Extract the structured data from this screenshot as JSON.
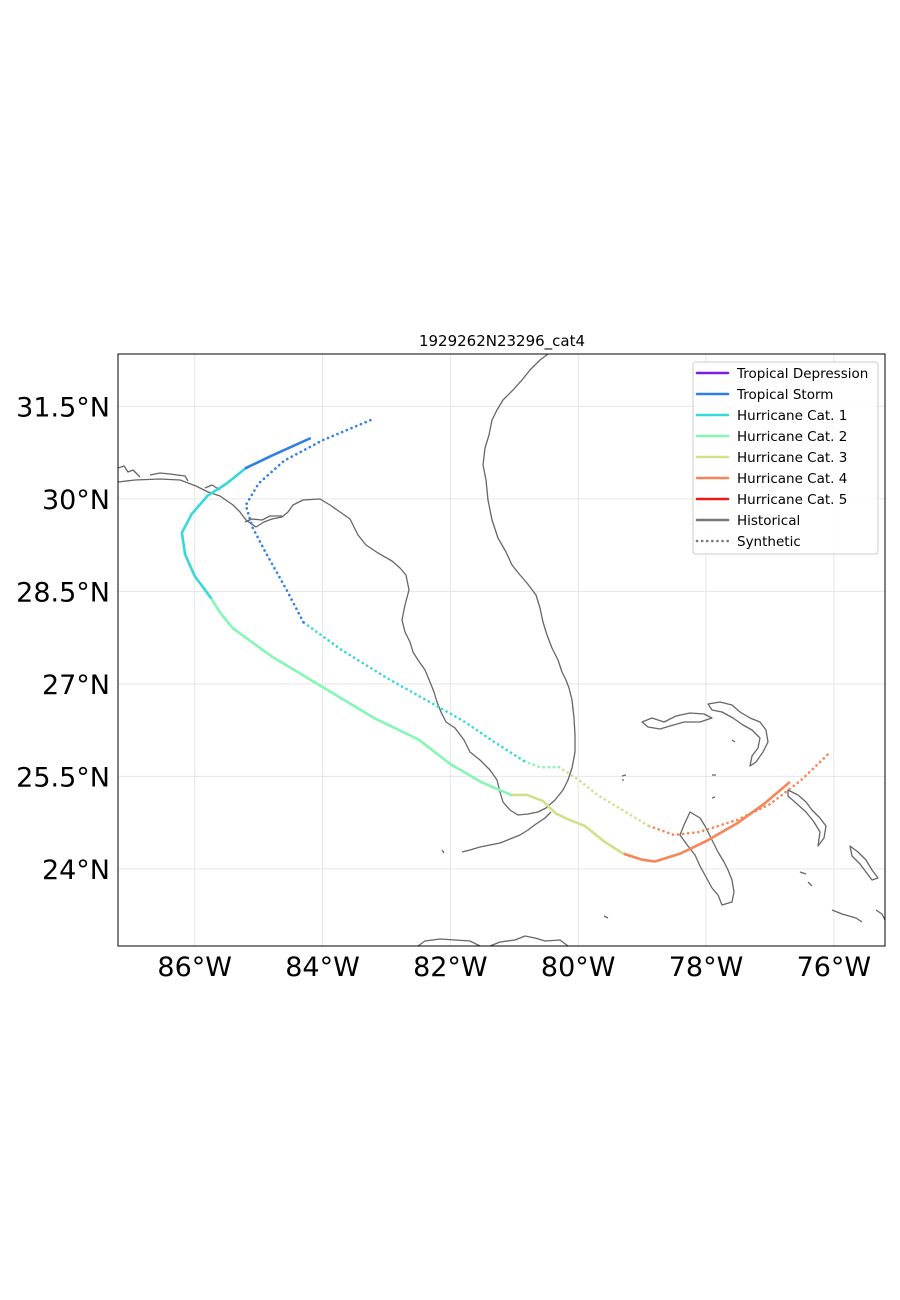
{
  "title": "1929262N23296_cat4",
  "axes": {
    "lon_range": [
      -87.2,
      -75.2
    ],
    "lat_range": [
      22.75,
      32.35
    ],
    "x_ticks": [
      {
        "value": -86,
        "label": "86°W"
      },
      {
        "value": -84,
        "label": "84°W"
      },
      {
        "value": -82,
        "label": "82°W"
      },
      {
        "value": -80,
        "label": "80°W"
      },
      {
        "value": -78,
        "label": "78°W"
      },
      {
        "value": -76,
        "label": "76°W"
      }
    ],
    "y_ticks": [
      {
        "value": 31.5,
        "label": "31.5°N"
      },
      {
        "value": 30,
        "label": "30°N"
      },
      {
        "value": 28.5,
        "label": "28.5°N"
      },
      {
        "value": 27,
        "label": "27°N"
      },
      {
        "value": 25.5,
        "label": "25.5°N"
      },
      {
        "value": 24,
        "label": "24°N"
      }
    ],
    "grid": true
  },
  "colors": {
    "tropical_depression": "#7a1de6",
    "tropical_storm": "#2f7fe6",
    "cat1": "#36d9d9",
    "cat2": "#85f7b5",
    "cat3": "#d3df89",
    "cat4": "#f98455",
    "cat5": "#ee1a1a",
    "historical": "#777777",
    "synthetic": "#777777",
    "coastline": "#666666"
  },
  "legend": {
    "placement": "top-right",
    "entries": [
      {
        "label": "Tropical Depression",
        "color_key": "tropical_depression",
        "style": "solid"
      },
      {
        "label": "Tropical Storm",
        "color_key": "tropical_storm",
        "style": "solid"
      },
      {
        "label": "Hurricane Cat. 1",
        "color_key": "cat1",
        "style": "solid"
      },
      {
        "label": "Hurricane Cat. 2",
        "color_key": "cat2",
        "style": "solid"
      },
      {
        "label": "Hurricane Cat. 3",
        "color_key": "cat3",
        "style": "solid"
      },
      {
        "label": "Hurricane Cat. 4",
        "color_key": "cat4",
        "style": "solid"
      },
      {
        "label": "Hurricane Cat. 5",
        "color_key": "cat5",
        "style": "solid"
      },
      {
        "label": "Historical",
        "color_key": "historical",
        "style": "solid"
      },
      {
        "label": "Synthetic",
        "color_key": "synthetic",
        "style": "dotted"
      }
    ]
  },
  "tracks": {
    "historical": {
      "style": "solid",
      "segments": [
        {
          "category": "cat4",
          "points": [
            [
              -76.7,
              25.4
            ],
            [
              -77.1,
              25.05
            ],
            [
              -77.5,
              24.75
            ],
            [
              -78.0,
              24.45
            ],
            [
              -78.4,
              24.25
            ],
            [
              -78.8,
              24.12
            ],
            [
              -79.0,
              24.15
            ],
            [
              -79.3,
              24.25
            ]
          ]
        },
        {
          "category": "cat3",
          "points": [
            [
              -79.3,
              24.25
            ],
            [
              -79.6,
              24.45
            ],
            [
              -79.9,
              24.7
            ],
            [
              -80.15,
              24.8
            ],
            [
              -80.35,
              24.9
            ],
            [
              -80.55,
              25.1
            ],
            [
              -80.8,
              25.2
            ],
            [
              -81.05,
              25.2
            ]
          ]
        },
        {
          "category": "cat2",
          "points": [
            [
              -81.05,
              25.2
            ],
            [
              -81.5,
              25.4
            ],
            [
              -82.0,
              25.7
            ],
            [
              -82.5,
              26.1
            ],
            [
              -83.2,
              26.45
            ],
            [
              -84.0,
              26.95
            ],
            [
              -84.8,
              27.45
            ],
            [
              -85.4,
              27.9
            ],
            [
              -85.6,
              28.15
            ],
            [
              -85.75,
              28.4
            ]
          ]
        },
        {
          "category": "cat1",
          "points": [
            [
              -85.75,
              28.4
            ],
            [
              -86.0,
              28.75
            ],
            [
              -86.15,
              29.1
            ],
            [
              -86.2,
              29.45
            ],
            [
              -86.05,
              29.75
            ],
            [
              -85.8,
              30.05
            ],
            [
              -85.5,
              30.25
            ],
            [
              -85.2,
              30.5
            ]
          ]
        },
        {
          "category": "tropical_storm",
          "points": [
            [
              -85.2,
              30.5
            ],
            [
              -84.8,
              30.7
            ],
            [
              -84.2,
              30.98
            ]
          ]
        }
      ]
    },
    "synthetic": {
      "style": "dotted",
      "segments": [
        {
          "category": "cat4",
          "points": [
            [
              -76.1,
              25.85
            ],
            [
              -76.5,
              25.45
            ],
            [
              -77.0,
              25.05
            ],
            [
              -77.5,
              24.8
            ],
            [
              -78.1,
              24.6
            ],
            [
              -78.5,
              24.55
            ],
            [
              -78.9,
              24.7
            ]
          ]
        },
        {
          "category": "cat3",
          "points": [
            [
              -78.9,
              24.7
            ],
            [
              -79.3,
              24.95
            ],
            [
              -79.7,
              25.2
            ],
            [
              -80.0,
              25.45
            ],
            [
              -80.3,
              25.65
            ]
          ]
        },
        {
          "category": "cat2",
          "points": [
            [
              -80.3,
              25.65
            ],
            [
              -80.6,
              25.65
            ],
            [
              -80.85,
              25.75
            ]
          ]
        },
        {
          "category": "cat1",
          "points": [
            [
              -80.85,
              25.75
            ],
            [
              -81.3,
              26.05
            ],
            [
              -81.8,
              26.4
            ],
            [
              -82.4,
              26.75
            ],
            [
              -83.0,
              27.1
            ],
            [
              -83.7,
              27.55
            ],
            [
              -84.3,
              28.0
            ]
          ]
        },
        {
          "category": "tropical_storm",
          "points": [
            [
              -84.3,
              28.0
            ],
            [
              -84.55,
              28.5
            ],
            [
              -84.9,
              29.15
            ],
            [
              -85.1,
              29.55
            ],
            [
              -85.2,
              29.9
            ],
            [
              -85.0,
              30.25
            ],
            [
              -84.6,
              30.62
            ],
            [
              -84.0,
              30.95
            ],
            [
              -83.2,
              31.3
            ]
          ]
        }
      ]
    }
  },
  "chart_data": {
    "type": "map-tracks",
    "title": "1929262N23296_cat4",
    "xlim": [
      -87.2,
      -75.2
    ],
    "ylim": [
      22.75,
      32.35
    ],
    "xticks": [
      "86°W",
      "84°W",
      "82°W",
      "80°W",
      "78°W",
      "76°W"
    ],
    "yticks": [
      "31.5°N",
      "30°N",
      "28.5°N",
      "27°N",
      "25.5°N",
      "24°N"
    ],
    "legend_placement": "top-right",
    "grid": true,
    "series": [
      {
        "name": "Historical",
        "categories": [
          "Hurricane Cat. 4",
          "Hurricane Cat. 3",
          "Hurricane Cat. 2",
          "Hurricane Cat. 1",
          "Tropical Storm"
        ]
      },
      {
        "name": "Synthetic",
        "categories": [
          "Hurricane Cat. 4",
          "Hurricane Cat. 3",
          "Hurricane Cat. 2",
          "Hurricane Cat. 1",
          "Tropical Storm"
        ]
      }
    ]
  }
}
